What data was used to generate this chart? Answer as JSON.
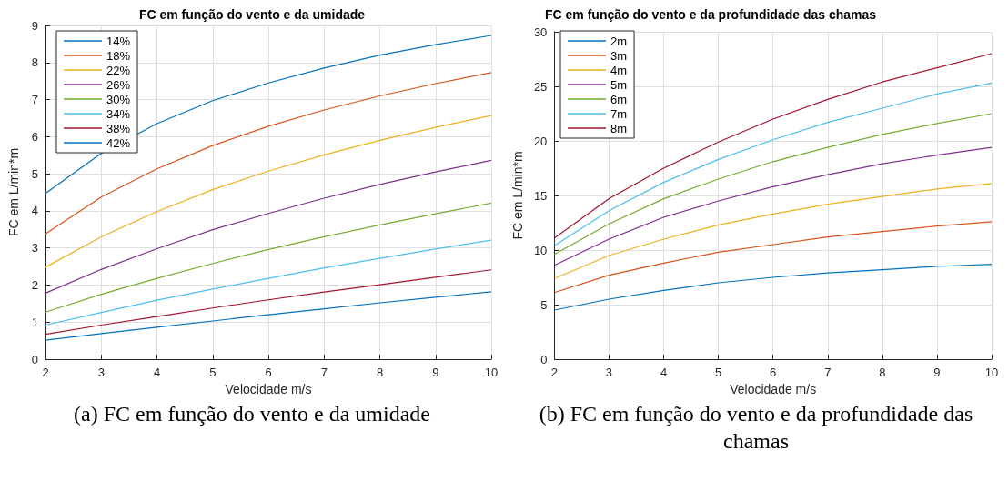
{
  "chart_data": [
    {
      "type": "line",
      "title": "FC em função do vento e da umidade",
      "xlabel": "Velocidade m/s",
      "ylabel": "FC em L/min*m",
      "annotations": [
        "(a) FC em função do vento e da umidade"
      ],
      "x": [
        2,
        3,
        4,
        5,
        6,
        7,
        8,
        9,
        10
      ],
      "xlim": [
        2,
        10
      ],
      "xticks": [
        2,
        3,
        4,
        5,
        6,
        7,
        8,
        9,
        10
      ],
      "ylim": [
        0,
        9
      ],
      "yticks": [
        0,
        1,
        2,
        3,
        4,
        5,
        6,
        7,
        8,
        9
      ],
      "grid": true,
      "legend": "top left",
      "series": [
        {
          "name": "14%",
          "color": "#0072bd",
          "values": [
            4.47,
            5.55,
            6.35,
            6.97,
            7.45,
            7.85,
            8.2,
            8.48,
            8.73
          ]
        },
        {
          "name": "18%",
          "color": "#d95319",
          "values": [
            3.38,
            4.37,
            5.13,
            5.76,
            6.28,
            6.72,
            7.1,
            7.43,
            7.73
          ]
        },
        {
          "name": "22%",
          "color": "#edb120",
          "values": [
            2.48,
            3.3,
            3.98,
            4.57,
            5.07,
            5.51,
            5.9,
            6.25,
            6.57
          ]
        },
        {
          "name": "26%",
          "color": "#7e2f8e",
          "values": [
            1.78,
            2.42,
            2.98,
            3.49,
            3.93,
            4.34,
            4.71,
            5.05,
            5.36
          ]
        },
        {
          "name": "30%",
          "color": "#77ac30",
          "values": [
            1.27,
            1.75,
            2.18,
            2.58,
            2.96,
            3.3,
            3.62,
            3.92,
            4.21
          ]
        },
        {
          "name": "34%",
          "color": "#4dbeee",
          "values": [
            0.92,
            1.26,
            1.59,
            1.89,
            2.18,
            2.46,
            2.72,
            2.97,
            3.21
          ]
        },
        {
          "name": "38%",
          "color": "#a2142f",
          "values": [
            0.67,
            0.92,
            1.15,
            1.38,
            1.6,
            1.81,
            2.01,
            2.21,
            2.41
          ]
        },
        {
          "name": "42%",
          "color": "#0072bd",
          "values": [
            0.51,
            0.69,
            0.86,
            1.03,
            1.2,
            1.36,
            1.52,
            1.67,
            1.82
          ]
        }
      ]
    },
    {
      "type": "line",
      "title": "FC em função do vento e da profundidade das chamas",
      "xlabel": "Velocidade m/s",
      "ylabel": "FC em L/min*m",
      "annotations": [
        "(b) FC em função do vento e da profundidade das chamas"
      ],
      "x": [
        2,
        3,
        4,
        5,
        6,
        7,
        8,
        9,
        10
      ],
      "xlim": [
        2,
        10
      ],
      "xticks": [
        2,
        3,
        4,
        5,
        6,
        7,
        8,
        9,
        10
      ],
      "ylim": [
        0,
        30
      ],
      "yticks": [
        0,
        5,
        10,
        15,
        20,
        25,
        30
      ],
      "grid": true,
      "legend": "top left",
      "series": [
        {
          "name": "2m",
          "color": "#0072bd",
          "values": [
            4.5,
            5.5,
            6.3,
            7.0,
            7.5,
            7.9,
            8.2,
            8.5,
            8.7
          ]
        },
        {
          "name": "3m",
          "color": "#d95319",
          "values": [
            6.1,
            7.7,
            8.8,
            9.8,
            10.5,
            11.2,
            11.7,
            12.2,
            12.6
          ]
        },
        {
          "name": "4m",
          "color": "#edb120",
          "values": [
            7.4,
            9.5,
            11.0,
            12.3,
            13.3,
            14.2,
            14.9,
            15.6,
            16.1
          ]
        },
        {
          "name": "5m",
          "color": "#7e2f8e",
          "values": [
            8.6,
            11.0,
            13.0,
            14.5,
            15.8,
            16.9,
            17.9,
            18.7,
            19.4
          ]
        },
        {
          "name": "6m",
          "color": "#77ac30",
          "values": [
            9.6,
            12.4,
            14.7,
            16.5,
            18.1,
            19.4,
            20.6,
            21.6,
            22.5
          ]
        },
        {
          "name": "7m",
          "color": "#4dbeee",
          "values": [
            10.4,
            13.6,
            16.2,
            18.3,
            20.1,
            21.7,
            23.0,
            24.3,
            25.3
          ]
        },
        {
          "name": "8m",
          "color": "#a2142f",
          "values": [
            11.1,
            14.7,
            17.5,
            19.9,
            22.0,
            23.8,
            25.4,
            26.7,
            28.0
          ]
        }
      ]
    }
  ]
}
